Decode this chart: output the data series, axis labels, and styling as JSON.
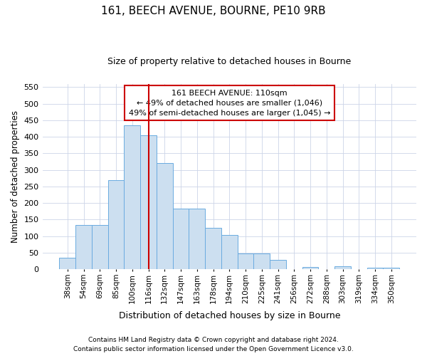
{
  "title_line1": "161, BEECH AVENUE, BOURNE, PE10 9RB",
  "title_line2": "Size of property relative to detached houses in Bourne",
  "xlabel": "Distribution of detached houses by size in Bourne",
  "ylabel": "Number of detached properties",
  "bar_labels": [
    "38sqm",
    "54sqm",
    "69sqm",
    "85sqm",
    "100sqm",
    "116sqm",
    "132sqm",
    "147sqm",
    "163sqm",
    "178sqm",
    "194sqm",
    "210sqm",
    "225sqm",
    "241sqm",
    "256sqm",
    "272sqm",
    "288sqm",
    "303sqm",
    "319sqm",
    "334sqm",
    "350sqm"
  ],
  "bar_values": [
    35,
    133,
    133,
    270,
    435,
    405,
    320,
    183,
    183,
    125,
    103,
    47,
    47,
    28,
    0,
    7,
    0,
    10,
    0,
    4,
    5
  ],
  "bar_color": "#ccdff0",
  "bar_edge_color": "#6aabe0",
  "vline_color": "#cc0000",
  "vline_linewidth": 1.5,
  "annotation_text": "161 BEECH AVENUE: 110sqm\n← 49% of detached houses are smaller (1,046)\n49% of semi-detached houses are larger (1,045) →",
  "annotation_box_color": "#ffffff",
  "annotation_box_edge": "#cc0000",
  "ylim": [
    0,
    560
  ],
  "yticks": [
    0,
    50,
    100,
    150,
    200,
    250,
    300,
    350,
    400,
    450,
    500,
    550
  ],
  "footer_line1": "Contains HM Land Registry data © Crown copyright and database right 2024.",
  "footer_line2": "Contains public sector information licensed under the Open Government Licence v3.0.",
  "background_color": "#ffffff",
  "grid_color": "#ccd5e8"
}
